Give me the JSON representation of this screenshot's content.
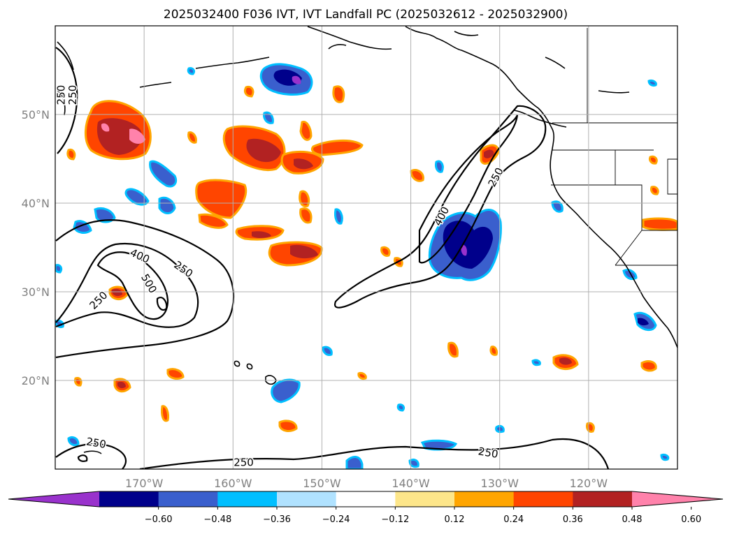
{
  "title": "2025032400 F036 IVT, IVT Landfall PC (2025032612 - 2025032900)",
  "map": {
    "lon_range": [
      -180,
      -110
    ],
    "lat_range": [
      10,
      60
    ],
    "lon_ticks": [
      {
        "lon": -170,
        "label": "170°W"
      },
      {
        "lon": -160,
        "label": "160°W"
      },
      {
        "lon": -150,
        "label": "150°W"
      },
      {
        "lon": -140,
        "label": "140°W"
      },
      {
        "lon": -130,
        "label": "130°W"
      },
      {
        "lon": -120,
        "label": "120°W"
      }
    ],
    "lat_ticks": [
      {
        "lat": 20,
        "label": "20°N"
      },
      {
        "lat": 30,
        "label": "30°N"
      },
      {
        "lat": 40,
        "label": "40°N"
      },
      {
        "lat": 50,
        "label": "50°N"
      }
    ],
    "grid": true
  },
  "colorbar": {
    "extend": "both",
    "colors": [
      "#9932cc",
      "#00008b",
      "#3a5fcd",
      "#00bfff",
      "#b0e2ff",
      "#ffffff",
      "#fde68a",
      "#ffa500",
      "#ff4500",
      "#b22222",
      "#ff82ab"
    ],
    "ticks": [
      "−0.60",
      "−0.48",
      "−0.36",
      "−0.24",
      "−0.12",
      "0.12",
      "0.24",
      "0.36",
      "0.48",
      "0.60"
    ]
  },
  "contour_labels": [
    {
      "text": "250",
      "lon": -179.3,
      "lat": 52.2,
      "angle": -90
    },
    {
      "text": "250",
      "lon": -178.0,
      "lat": 52.2,
      "angle": -90
    },
    {
      "text": "400",
      "lon": -170.5,
      "lat": 34.0,
      "angle": 25
    },
    {
      "text": "250",
      "lon": -165.6,
      "lat": 32.5,
      "angle": 35
    },
    {
      "text": "500",
      "lon": -169.5,
      "lat": 30.9,
      "angle": 60
    },
    {
      "text": "250",
      "lon": -175.1,
      "lat": 29.0,
      "angle": -45
    },
    {
      "text": "400",
      "lon": -136.5,
      "lat": 38.5,
      "angle": -62
    },
    {
      "text": "250",
      "lon": -130.4,
      "lat": 42.9,
      "angle": -62
    },
    {
      "text": "250",
      "lon": -175.4,
      "lat": 12.9,
      "angle": 10
    },
    {
      "text": "250",
      "lon": -158.8,
      "lat": 10.7,
      "angle": 0
    },
    {
      "text": "250",
      "lon": -131.3,
      "lat": 11.8,
      "angle": 10
    }
  ],
  "legend_levels_note": ""
}
